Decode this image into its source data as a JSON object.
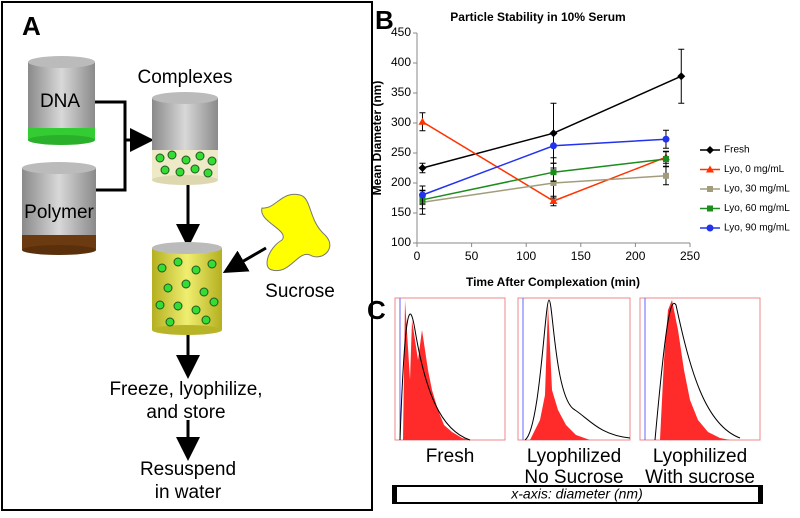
{
  "chart_data": {
    "type": "line",
    "title": "Particle Stability in 10% Serum",
    "x_label": "Time After Complexation (min)",
    "y_label": "Mean Diameter (nm)",
    "xlim": [
      0,
      250
    ],
    "xticks": [
      0,
      50,
      100,
      150,
      200,
      250
    ],
    "ylim": [
      100,
      450
    ],
    "yticks": [
      100,
      150,
      200,
      250,
      300,
      350,
      400,
      450
    ],
    "grid": false,
    "legend": "right",
    "series": [
      {
        "name": "Fresh",
        "color": "#000000",
        "marker": "diamond",
        "x": [
          5,
          125,
          242
        ],
        "values": [
          225,
          283,
          378
        ],
        "errors": [
          8,
          50,
          45
        ]
      },
      {
        "name": "Lyo, 0 mg/mL",
        "color": "#ff3300",
        "marker": "triangle",
        "x": [
          5,
          125,
          228
        ],
        "values": [
          302,
          170,
          243
        ],
        "errors": [
          15,
          8,
          10
        ]
      },
      {
        "name": "Lyo, 30 mg/mL",
        "color": "#a39c7c",
        "marker": "square",
        "x": [
          5,
          125,
          228
        ],
        "values": [
          168,
          200,
          212
        ],
        "errors": [
          20,
          25,
          15
        ]
      },
      {
        "name": "Lyo, 60 mg/mL",
        "color": "#1c8c1c",
        "marker": "square",
        "x": [
          5,
          125,
          228
        ],
        "values": [
          172,
          218,
          240
        ],
        "errors": [
          15,
          15,
          12
        ]
      },
      {
        "name": "Lyo, 90 mg/mL",
        "color": "#2233ee",
        "marker": "circle",
        "x": [
          5,
          125,
          228
        ],
        "values": [
          180,
          262,
          273
        ],
        "errors": [
          15,
          20,
          15
        ]
      }
    ]
  },
  "panel_labels": [
    "A",
    "B",
    "C"
  ],
  "diagram": {
    "nodes": [
      {
        "label": [
          "DNA"
        ]
      },
      {
        "label": [
          "Polymer"
        ]
      },
      {
        "label": [
          "Complexes"
        ]
      },
      {
        "label": [
          "Sucrose"
        ]
      },
      {
        "label": [
          "Freeze, lyophilize,",
          "and store"
        ]
      },
      {
        "label": [
          "Resuspend",
          "in water"
        ]
      }
    ]
  },
  "panel_c": {
    "histograms": [
      {
        "label": [
          "Fresh"
        ]
      },
      {
        "label": [
          "Lyophilized",
          "No Sucrose"
        ]
      },
      {
        "label": [
          "Lyophilized",
          "With sucrose"
        ]
      }
    ],
    "x_axis_note": "x-axis: diameter (nm)"
  }
}
